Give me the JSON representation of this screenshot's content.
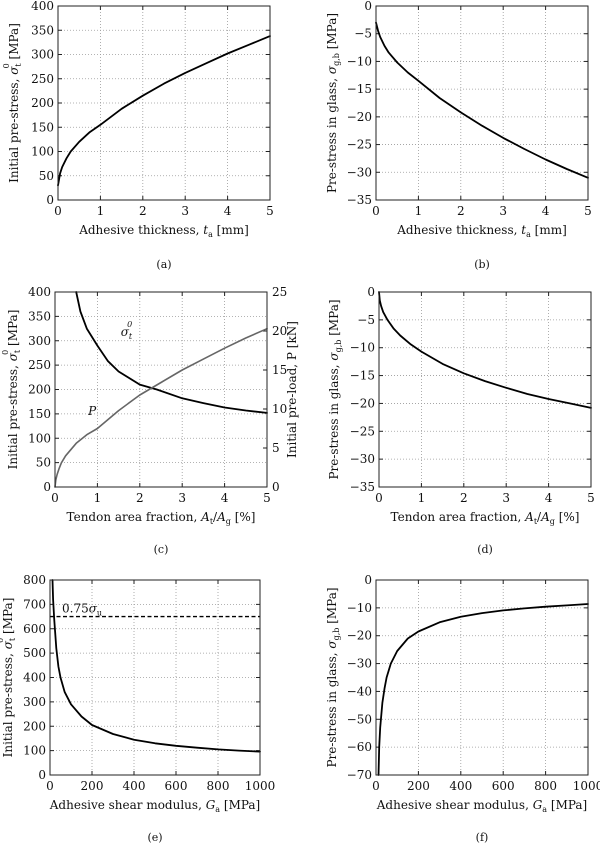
{
  "figure": {
    "colors": {
      "primary": "#000000",
      "secondary": "#666666",
      "grid": "#9a9a9a",
      "frame": "#222222"
    }
  },
  "chart_data": [
    {
      "id": "a",
      "type": "line",
      "caption": "(a)",
      "title": "",
      "xlabel": "Adhesive thickness, t_a [mm]",
      "ylabel": "Initial pre-stress, σ_t^0 [MPa]",
      "xlim": [
        0,
        5
      ],
      "ylim": [
        0,
        400
      ],
      "xticks": [
        0,
        1,
        2,
        3,
        4,
        5
      ],
      "yticks": [
        0,
        50,
        100,
        150,
        200,
        250,
        300,
        350,
        400
      ],
      "grid": true,
      "series": [
        {
          "name": "σ_t^0",
          "color": "#000000",
          "x": [
            0,
            0.05,
            0.1,
            0.2,
            0.3,
            0.5,
            0.75,
            1,
            1.5,
            2,
            2.5,
            3,
            3.5,
            4,
            4.5,
            5
          ],
          "y": [
            30,
            55,
            68,
            86,
            100,
            120,
            140,
            155,
            188,
            215,
            240,
            262,
            282,
            302,
            320,
            338
          ]
        }
      ]
    },
    {
      "id": "b",
      "type": "line",
      "caption": "(b)",
      "title": "",
      "xlabel": "Adhesive thickness, t_a [mm]",
      "ylabel": "Pre-stress in glass, σ_g,b [MPa]",
      "xlim": [
        0,
        5
      ],
      "ylim": [
        -35,
        0
      ],
      "xticks": [
        0,
        1,
        2,
        3,
        4,
        5
      ],
      "yticks": [
        -35,
        -30,
        -25,
        -20,
        -15,
        -10,
        -5,
        0
      ],
      "grid": true,
      "series": [
        {
          "name": "σ_g,b",
          "color": "#000000",
          "x": [
            0,
            0.05,
            0.1,
            0.2,
            0.3,
            0.5,
            0.75,
            1,
            1.5,
            2,
            2.5,
            3,
            3.5,
            4,
            4.5,
            5
          ],
          "y": [
            -3,
            -4.5,
            -5.6,
            -7.2,
            -8.4,
            -10.2,
            -12,
            -13.5,
            -16.6,
            -19.2,
            -21.6,
            -23.8,
            -25.8,
            -27.7,
            -29.4,
            -31
          ]
        }
      ]
    },
    {
      "id": "c",
      "type": "line",
      "caption": "(c)",
      "title": "",
      "xlabel": "Tendon area fraction, A_t/A_g [%]",
      "ylabel": "Initial pre-stress, σ_t^0 [MPa]",
      "ylabel_right": "Initial pre-load, P [kN]",
      "xlim": [
        0,
        5
      ],
      "ylim": [
        0,
        400
      ],
      "ylim_right": [
        0,
        25
      ],
      "xticks": [
        0,
        1,
        2,
        3,
        4,
        5
      ],
      "yticks": [
        0,
        50,
        100,
        150,
        200,
        250,
        300,
        350,
        400
      ],
      "yticks_right": [
        0,
        5,
        10,
        15,
        20,
        25
      ],
      "grid": true,
      "annotations": [
        {
          "text": "σ_t^0",
          "x": 1.55,
          "y": 310
        },
        {
          "text": "P",
          "x": 0.78,
          "y": 148
        }
      ],
      "series": [
        {
          "name": "σ_t^0",
          "axis": "left",
          "color": "#000000",
          "x": [
            0.5,
            0.6,
            0.75,
            1,
            1.25,
            1.5,
            2,
            2.4,
            3,
            3.5,
            4,
            4.5,
            5
          ],
          "y": [
            400,
            360,
            325,
            290,
            258,
            237,
            210,
            200,
            182,
            172,
            163,
            157,
            152
          ]
        },
        {
          "name": "P",
          "axis": "right",
          "color": "#666666",
          "x": [
            0,
            0.02,
            0.05,
            0.1,
            0.15,
            0.25,
            0.5,
            0.75,
            1,
            1.5,
            2,
            2.5,
            3,
            3.5,
            4,
            4.5,
            5
          ],
          "y": [
            0,
            0.9,
            1.6,
            2.4,
            3.1,
            4.0,
            5.6,
            6.7,
            7.5,
            9.8,
            11.8,
            13.4,
            15.0,
            16.4,
            17.8,
            19.1,
            20.3
          ]
        }
      ]
    },
    {
      "id": "d",
      "type": "line",
      "caption": "(d)",
      "title": "",
      "xlabel": "Tendon area fraction, A_t/A_g [%]",
      "ylabel": "Pre-stress in glass, σ_g,b [MPa]",
      "xlim": [
        0,
        5
      ],
      "ylim": [
        -35,
        0
      ],
      "xticks": [
        0,
        1,
        2,
        3,
        4,
        5
      ],
      "yticks": [
        -35,
        -30,
        -25,
        -20,
        -15,
        -10,
        -5,
        0
      ],
      "grid": true,
      "series": [
        {
          "name": "σ_g,b",
          "color": "#000000",
          "x": [
            0,
            0.02,
            0.05,
            0.1,
            0.2,
            0.35,
            0.5,
            0.75,
            1,
            1.5,
            2,
            2.5,
            3,
            3.5,
            4,
            4.5,
            5
          ],
          "y": [
            0,
            -1.5,
            -2.5,
            -3.6,
            -5.0,
            -6.6,
            -7.8,
            -9.4,
            -10.7,
            -12.9,
            -14.6,
            -16.0,
            -17.2,
            -18.3,
            -19.2,
            -20.0,
            -20.8
          ]
        }
      ]
    },
    {
      "id": "e",
      "type": "line",
      "caption": "(e)",
      "title": "",
      "xlabel": "Adhesive shear modulus, G_a [MPa]",
      "ylabel": "Initial pre-stress, σ_t^0 [MPa]",
      "xlim": [
        0,
        1000
      ],
      "ylim": [
        0,
        800
      ],
      "xticks": [
        0,
        200,
        400,
        600,
        800,
        1000
      ],
      "yticks": [
        0,
        100,
        200,
        300,
        400,
        500,
        600,
        700,
        800
      ],
      "grid": true,
      "hline": {
        "y": 650,
        "label": "0.75σ_u",
        "style": "dashed"
      },
      "series": [
        {
          "name": "σ_t^0",
          "color": "#000000",
          "x": [
            12,
            15,
            20,
            30,
            40,
            50,
            70,
            100,
            150,
            200,
            300,
            400,
            500,
            600,
            700,
            800,
            900,
            1000
          ],
          "y": [
            800,
            720,
            640,
            520,
            445,
            400,
            340,
            290,
            240,
            205,
            168,
            145,
            130,
            120,
            112,
            105,
            100,
            96
          ]
        }
      ]
    },
    {
      "id": "f",
      "type": "line",
      "caption": "(f)",
      "title": "",
      "xlabel": "Adhesive shear modulus, G_a [MPa]",
      "ylabel": "Pre-stress in glass, σ_g,b [MPa]",
      "xlim": [
        0,
        1000
      ],
      "ylim": [
        -70,
        0
      ],
      "xticks": [
        0,
        200,
        400,
        600,
        800,
        1000
      ],
      "yticks": [
        -70,
        -60,
        -50,
        -40,
        -30,
        -20,
        -10,
        0
      ],
      "grid": true,
      "series": [
        {
          "name": "σ_g,b",
          "color": "#000000",
          "x": [
            12,
            15,
            20,
            30,
            40,
            50,
            70,
            100,
            150,
            200,
            300,
            400,
            500,
            600,
            700,
            800,
            900,
            1000
          ],
          "y": [
            -70,
            -60,
            -53,
            -44,
            -39,
            -35,
            -30,
            -25.5,
            -21,
            -18.5,
            -15.2,
            -13.2,
            -11.9,
            -10.9,
            -10.2,
            -9.6,
            -9.1,
            -8.6
          ]
        }
      ]
    }
  ]
}
